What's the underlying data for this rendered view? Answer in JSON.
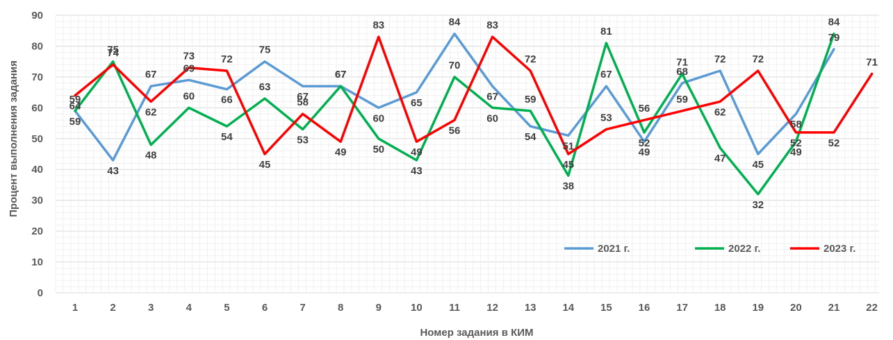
{
  "chart_data": {
    "type": "line",
    "xlabel": "Номер задания в КИМ",
    "ylabel": "Процент выполнения задания",
    "categories": [
      "1",
      "2",
      "3",
      "4",
      "5",
      "6",
      "7",
      "8",
      "9",
      "10",
      "11",
      "12",
      "13",
      "14",
      "15",
      "16",
      "17",
      "18",
      "19",
      "20",
      "21",
      "22"
    ],
    "ylim": [
      0,
      90
    ],
    "yticks": [
      0,
      10,
      20,
      30,
      40,
      50,
      60,
      70,
      80,
      90
    ],
    "grid": true,
    "legend_position": "bottom-right",
    "series": [
      {
        "name": "2021 г.",
        "color": "#5B9BD5",
        "values": [
          59,
          43,
          67,
          69,
          66,
          75,
          67,
          67,
          60,
          65,
          84,
          67,
          54,
          51,
          67,
          49,
          68,
          72,
          45,
          58,
          79,
          null
        ]
      },
      {
        "name": "2022 г.",
        "color": "#00B050",
        "values": [
          59,
          75,
          48,
          60,
          54,
          63,
          53,
          67,
          50,
          43,
          70,
          60,
          59,
          38,
          81,
          52,
          71,
          47,
          32,
          49,
          84,
          null
        ]
      },
      {
        "name": "2023 г.",
        "color": "#FF0000",
        "values": [
          64,
          74,
          62,
          73,
          72,
          45,
          58,
          49,
          83,
          49,
          56,
          83,
          72,
          45,
          53,
          56,
          59,
          62,
          72,
          52,
          52,
          71
        ]
      }
    ]
  }
}
